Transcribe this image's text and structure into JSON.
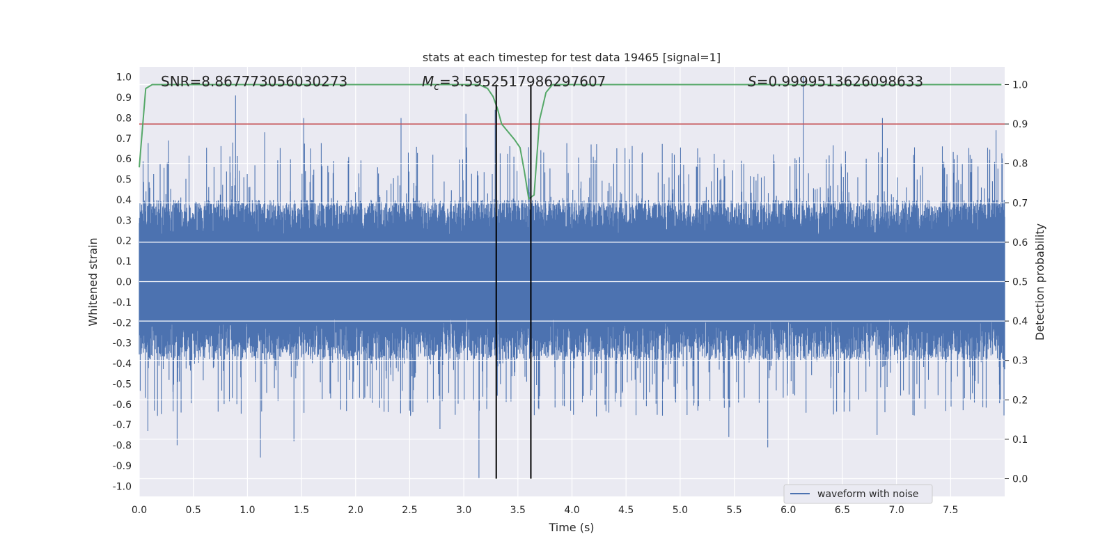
{
  "chart_data": {
    "type": "line",
    "title": "stats at each timestep for test data 19465 [signal=1]",
    "xlabel": "Time (s)",
    "ylabel": "Whitened strain",
    "y2label": "Detection probability",
    "xlim": [
      0.0,
      8.0
    ],
    "ylim": [
      -1.05,
      1.05
    ],
    "y2lim": [
      -0.045,
      1.045
    ],
    "xticks": [
      "0.0",
      "0.5",
      "1.0",
      "1.5",
      "2.0",
      "2.5",
      "3.0",
      "3.5",
      "4.0",
      "4.5",
      "5.0",
      "5.5",
      "6.0",
      "6.5",
      "7.0",
      "7.5"
    ],
    "yticks": [
      "1.0",
      "0.9",
      "0.8",
      "0.7",
      "0.6",
      "0.5",
      "0.4",
      "0.3",
      "0.2",
      "0.1",
      "0.0",
      "-0.1",
      "-0.2",
      "-0.3",
      "-0.4",
      "-0.5",
      "-0.6",
      "-0.7",
      "-0.8",
      "-0.9",
      "-1.0"
    ],
    "y2ticks": [
      "1.0",
      "0.9",
      "0.8",
      "0.7",
      "0.6",
      "0.5",
      "0.4",
      "0.3",
      "0.2",
      "0.1",
      "0.0"
    ],
    "grid": true,
    "legend_position": "lower-right",
    "annotations": {
      "snr": "SNR=8.867773056030273",
      "mc_symbol": "M",
      "mc_sub": "c",
      "mc_value": "=3.5952517986297607",
      "s_symbol": "S",
      "s_value": "=0.9999513626098633"
    },
    "series": [
      {
        "name": "waveform with noise",
        "color": "#4c72b0",
        "band": {
          "core_low": -0.17,
          "core_high": 0.22,
          "typical_low": -0.38,
          "typical_high": 0.4
        },
        "peaks": [
          {
            "x": 0.89,
            "y": 0.91
          },
          {
            "x": 0.27,
            "y": 0.69
          },
          {
            "x": 1.16,
            "y": 0.73
          },
          {
            "x": 1.52,
            "y": 0.8
          },
          {
            "x": 2.42,
            "y": 0.8
          },
          {
            "x": 3.02,
            "y": 0.82
          },
          {
            "x": 3.29,
            "y": 0.84
          },
          {
            "x": 6.14,
            "y": 1.0
          },
          {
            "x": 6.87,
            "y": 0.8
          },
          {
            "x": 7.92,
            "y": 0.74
          },
          {
            "x": 0.35,
            "y": -0.8
          },
          {
            "x": 1.12,
            "y": -0.86
          },
          {
            "x": 0.08,
            "y": -0.73
          },
          {
            "x": 1.43,
            "y": -0.78
          },
          {
            "x": 3.14,
            "y": -0.96
          },
          {
            "x": 3.3,
            "y": -0.92
          },
          {
            "x": 5.81,
            "y": -0.81
          },
          {
            "x": 6.82,
            "y": -0.75
          },
          {
            "x": 2.78,
            "y": -0.72
          },
          {
            "x": 5.45,
            "y": -0.76
          }
        ]
      },
      {
        "name": "detection probability",
        "color": "#55a868",
        "axis": "right",
        "points": [
          [
            0.0,
            0.79
          ],
          [
            0.06,
            0.99
          ],
          [
            0.12,
            1.0
          ],
          [
            1.0,
            1.0
          ],
          [
            2.0,
            1.0
          ],
          [
            3.0,
            1.0
          ],
          [
            3.14,
            1.0
          ],
          [
            3.22,
            0.99
          ],
          [
            3.27,
            0.97
          ],
          [
            3.31,
            0.94
          ],
          [
            3.35,
            0.9
          ],
          [
            3.47,
            0.86
          ],
          [
            3.52,
            0.84
          ],
          [
            3.56,
            0.78
          ],
          [
            3.6,
            0.71
          ],
          [
            3.65,
            0.72
          ],
          [
            3.7,
            0.91
          ],
          [
            3.76,
            0.98
          ],
          [
            3.82,
            1.0
          ],
          [
            4.0,
            1.0
          ],
          [
            5.0,
            1.0
          ],
          [
            6.0,
            1.0
          ],
          [
            7.0,
            1.0
          ],
          [
            7.97,
            1.0
          ]
        ]
      }
    ],
    "threshold": {
      "value": 0.9,
      "axis": "right",
      "color": "#c44e52"
    },
    "vlines": [
      {
        "x": 3.3
      },
      {
        "x": 3.62
      }
    ],
    "vline_color": "#000000"
  }
}
